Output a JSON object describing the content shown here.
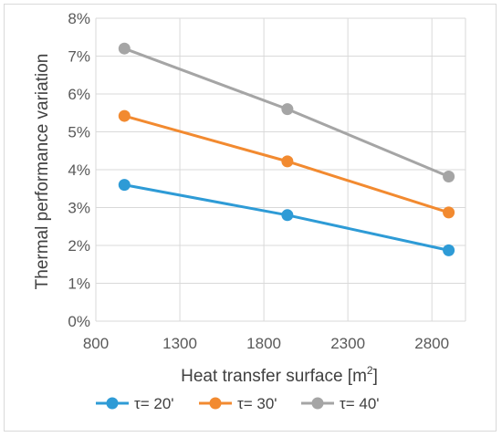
{
  "chart_data": {
    "type": "line",
    "title": "",
    "xlabel": "Heat transfer surface [m",
    "xlabel_sup": "2",
    "xlabel_suffix": "]",
    "ylabel": "Thermal performance variation",
    "xlim": [
      800,
      3000
    ],
    "ylim": [
      0,
      8
    ],
    "xticks": [
      "800",
      "1300",
      "1800",
      "2300",
      "2800"
    ],
    "yticks": [
      "0%",
      "1%",
      "2%",
      "3%",
      "4%",
      "5%",
      "6%",
      "7%",
      "8%"
    ],
    "grid": true,
    "legend_position": "bottom",
    "series": [
      {
        "name": "τ= 20'",
        "color": "#2e9bd6",
        "x": [
          970,
          1940,
          2900
        ],
        "y": [
          3.6,
          2.8,
          1.87
        ]
      },
      {
        "name": "τ= 30'",
        "color": "#f28a30",
        "x": [
          970,
          1940,
          2900
        ],
        "y": [
          5.42,
          4.22,
          2.87
        ]
      },
      {
        "name": "τ= 40'",
        "color": "#a5a5a5",
        "x": [
          970,
          1940,
          2900
        ],
        "y": [
          7.2,
          5.6,
          3.82
        ]
      }
    ]
  }
}
